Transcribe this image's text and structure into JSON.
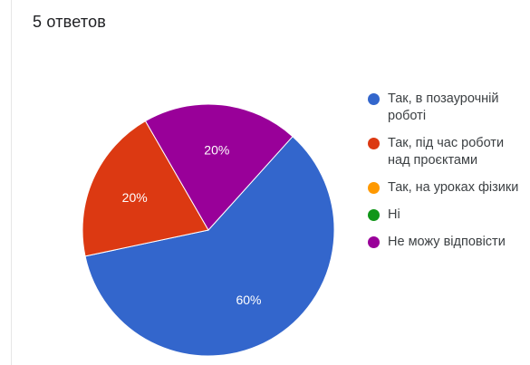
{
  "header": {
    "response_count": "5 ответов"
  },
  "chart_data": {
    "type": "pie",
    "categories": [
      "Так, в позаурочній роботі",
      "Так, під час роботи над проєктами",
      "Так, на уроках фізики",
      "Ні",
      "Не можу відповісти"
    ],
    "values": [
      3,
      1,
      0,
      0,
      1
    ],
    "percent_labels": [
      "60%",
      "20%",
      "",
      "",
      "20%"
    ],
    "colors": [
      "#3366cc",
      "#dc3912",
      "#ff9900",
      "#109618",
      "#990099"
    ],
    "legend_placement": "right",
    "slice_order": [
      0,
      1,
      4
    ]
  }
}
